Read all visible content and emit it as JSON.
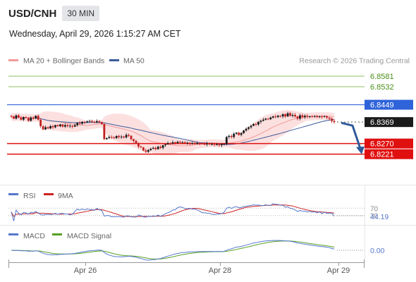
{
  "header": {
    "symbol": "USD/CNH",
    "interval": "30 MIN",
    "datetime": "Wednesday, April 29, 2026 1:15:27 AM CET"
  },
  "legend": {
    "ma20": "MA 20 + Bollinger Bands",
    "ma50": "MA 50",
    "credit": "Research © 2026 Trading Central",
    "rsi": "RSI",
    "rsi_ma": "9MA",
    "macd": "MACD",
    "macd_signal": "MACD Signal"
  },
  "colors": {
    "up": "#1a1a1a",
    "down": "#c02020",
    "bollinger_fill": "#fbd5d5",
    "ma20": "#f29a9a",
    "ma50": "#3b5b9a",
    "green_level": "#8cc063",
    "green_text": "#4a8f1a",
    "blue_level": "#2f63d9",
    "red_level": "#e01010",
    "arrow": "#2f5a9a",
    "rsi": "#5577cc",
    "rsi_ma": "#cc2222",
    "macd": "#5577cc",
    "macd_signal": "#55a022"
  },
  "chart_data": [
    {
      "type": "candlestick",
      "panel": "price",
      "ylim": [
        6.808,
        6.862
      ],
      "levels": [
        {
          "label": "6.8581",
          "value": 6.8581,
          "kind": "resistance-green"
        },
        {
          "label": "6.8532",
          "value": 6.8532,
          "kind": "resistance-green"
        },
        {
          "label": "6.8449",
          "value": 6.8449,
          "kind": "pivot-blue"
        },
        {
          "label": "6.8369",
          "value": 6.8369,
          "kind": "last-price"
        },
        {
          "label": "6.8270",
          "value": 6.827,
          "kind": "target-red"
        },
        {
          "label": "6.8221",
          "value": 6.8221,
          "kind": "target-red"
        }
      ],
      "arrow": {
        "from": 6.8369,
        "to": 6.8221,
        "direction": "down"
      },
      "x_ticks": [
        "Apr 26",
        "Apr 28",
        "Apr 29"
      ],
      "closes": [
        6.8395,
        6.8385,
        6.84,
        6.839,
        6.838,
        6.8392,
        6.8388,
        6.8375,
        6.839,
        6.8385,
        6.8398,
        6.838,
        6.835,
        6.8335,
        6.8345,
        6.834,
        6.835,
        6.8345,
        6.8355,
        6.835,
        6.8358,
        6.8348,
        6.8355,
        6.835,
        6.8352,
        6.8348,
        6.8355,
        6.8365,
        6.8362,
        6.837,
        6.8368,
        6.8372,
        6.8374,
        6.837,
        6.8368,
        6.8373,
        6.8369,
        6.836,
        6.829,
        6.8295,
        6.83,
        6.8298,
        6.8295,
        6.8305,
        6.83,
        6.8302,
        6.8298,
        6.831,
        6.8306,
        6.829,
        6.8282,
        6.827,
        6.8256,
        6.8252,
        6.8238,
        6.8232,
        6.824,
        6.8246,
        6.825,
        6.8244,
        6.8255,
        6.825,
        6.8262,
        6.8266,
        6.8272,
        6.827,
        6.8276,
        6.8272,
        6.8278,
        6.8276,
        6.8276,
        6.8272,
        6.8274,
        6.827,
        6.8272,
        6.8268,
        6.8272,
        6.827,
        6.8268,
        6.8266,
        6.827,
        6.8266,
        6.8268,
        6.8264,
        6.8266,
        6.8262,
        6.8266,
        6.8268,
        6.83,
        6.8305,
        6.83,
        6.8315,
        6.832,
        6.831,
        6.8318,
        6.833,
        6.8338,
        6.8345,
        6.8352,
        6.836,
        6.8358,
        6.837,
        6.8375,
        6.838,
        6.8385,
        6.8382,
        6.839,
        6.8395,
        6.8392,
        6.8398,
        6.8395,
        6.8405,
        6.8395,
        6.841,
        6.8398,
        6.8402,
        6.8395,
        6.8385,
        6.84,
        6.8392,
        6.8398,
        6.8394,
        6.8396,
        6.8394,
        6.8397,
        6.8392,
        6.8395,
        6.8393,
        6.8396,
        6.839,
        6.8385,
        6.8374,
        6.8369
      ]
    },
    {
      "type": "line",
      "panel": "rsi",
      "series": [
        {
          "name": "RSI"
        },
        {
          "name": "9MA"
        }
      ],
      "reference_levels": [
        70,
        30
      ],
      "last_value": "44.19"
    },
    {
      "type": "line",
      "panel": "macd",
      "series": [
        {
          "name": "MACD"
        },
        {
          "name": "MACD Signal"
        }
      ],
      "reference_levels": [
        0
      ],
      "last_value": "0.00"
    }
  ]
}
